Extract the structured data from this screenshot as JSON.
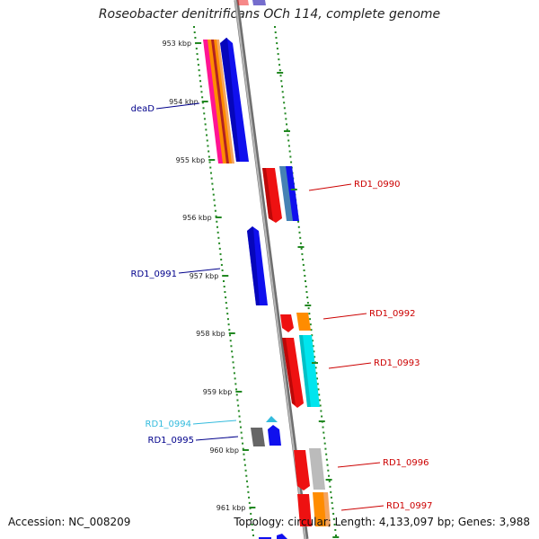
{
  "title": "Roseobacter denitrificans OCh 114, complete genome",
  "footer": {
    "accession": "Accession: NC_008209",
    "summary": "Topology: circular; Length: 4,133,097 bp; Genes: 3,988"
  },
  "ticks": [
    {
      "label": "953 kbp"
    },
    {
      "label": "954 kbp"
    },
    {
      "label": "955 kbp"
    },
    {
      "label": "956 kbp"
    },
    {
      "label": "957 kbp"
    },
    {
      "label": "958 kbp"
    },
    {
      "label": "959 kbp"
    },
    {
      "label": "960 kbp"
    },
    {
      "label": "961 kbp"
    }
  ],
  "gene_labels": [
    {
      "text": "deaD",
      "color": "#00008b"
    },
    {
      "text": "RD1_0990",
      "color": "#cc0000"
    },
    {
      "text": "RD1_0991",
      "color": "#00008b"
    },
    {
      "text": "RD1_0992",
      "color": "#cc0000"
    },
    {
      "text": "RD1_0993",
      "color": "#cc0000"
    },
    {
      "text": "RD1_0994",
      "color": "#33bbdd"
    },
    {
      "text": "RD1_0995",
      "color": "#00008b"
    },
    {
      "text": "RD1_0996",
      "color": "#cc0000"
    },
    {
      "text": "RD1_0997",
      "color": "#cc0000"
    }
  ],
  "colors": {
    "backbone": "#9a9a9a",
    "dots": "#228822",
    "forward_gene": "#1010ee",
    "reverse_gene": "#ee1111",
    "orange": "#ff8c00",
    "cyan": "#00e5ee",
    "grey": "#bbbbbb",
    "dark_grey": "#666666",
    "pink": "#ff1493"
  }
}
